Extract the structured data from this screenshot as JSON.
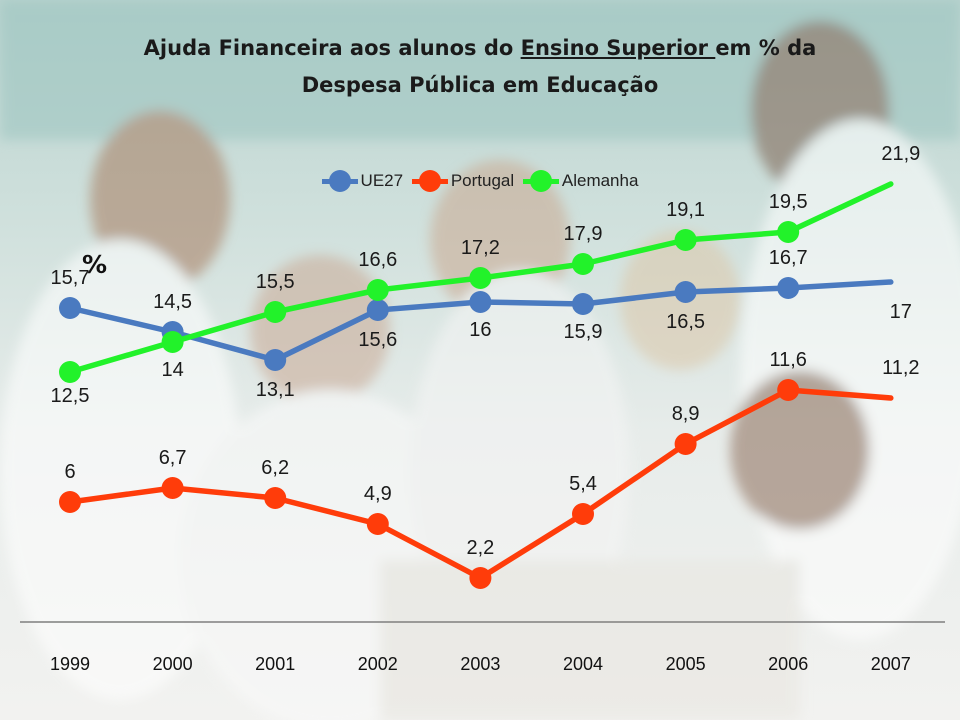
{
  "title_parts": {
    "before": "Ajuda Financeira aos alunos do ",
    "underlined": "Ensino Superior ",
    "after": "em % da",
    "line2": "Despesa Pública em Educação"
  },
  "ylabel": "%",
  "colors": {
    "ue27": "#4a7ac0",
    "portugal": "#ff3c0a",
    "alemanha": "#22f22a",
    "axis": "#7f7f7f"
  },
  "chart_data": {
    "type": "line",
    "title": "Ajuda Financeira aos alunos do Ensino Superior em % da Despesa Pública em Educação",
    "ylabel": "%",
    "xlabel": "",
    "categories": [
      "1999",
      "2000",
      "2001",
      "2002",
      "2003",
      "2004",
      "2005",
      "2006",
      "2007"
    ],
    "ylim": [
      0,
      25
    ],
    "grid": false,
    "legend": "top",
    "series": [
      {
        "name": "UE27",
        "color": "#4a7ac0",
        "values": [
          15.7,
          14.5,
          13.1,
          15.6,
          16,
          15.9,
          16.5,
          16.7,
          17
        ],
        "labels": [
          "15,7",
          "14,5",
          "13,1",
          "15,6",
          "16",
          "15,9",
          "16,5",
          "16,7",
          "17"
        ]
      },
      {
        "name": "Portugal",
        "color": "#ff3c0a",
        "values": [
          6,
          6.7,
          6.2,
          4.9,
          2.2,
          5.4,
          8.9,
          11.6,
          11.2
        ],
        "labels": [
          "6",
          "6,7",
          "6,2",
          "4,9",
          "2,2",
          "5,4",
          "8,9",
          "11,6",
          "11,2"
        ]
      },
      {
        "name": "Alemanha",
        "color": "#22f22a",
        "values": [
          12.5,
          14,
          15.5,
          16.6,
          17.2,
          17.9,
          19.1,
          19.5,
          21.9
        ],
        "labels": [
          "12,5",
          "14",
          "15,5",
          "16,6",
          "17,2",
          "17,9",
          "19,1",
          "19,5",
          "21,9"
        ]
      }
    ]
  }
}
